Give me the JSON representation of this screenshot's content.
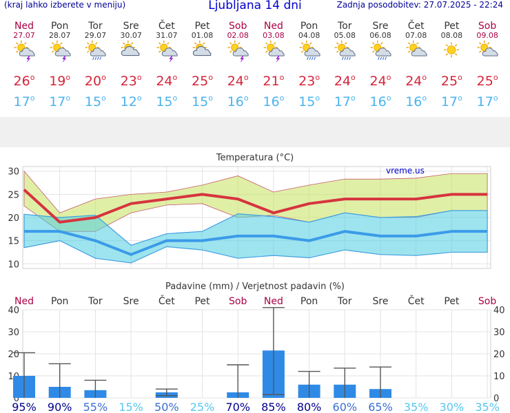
{
  "header": {
    "left_note": "(kraj lahko izberete v meniju)",
    "title": "Ljubljana 14 dni",
    "last_update": "Zadnja posodobitev: 27.07.2025 - 22:24"
  },
  "colors": {
    "weekend": "#aa0044",
    "weekday": "#333333",
    "max": "#d6243a",
    "min": "#4bb3ee"
  },
  "days": [
    {
      "name": "Ned",
      "date": "27.07",
      "weekend": true,
      "icon": "sun-cloud-thunder-icon",
      "max": "26",
      "min": "17"
    },
    {
      "name": "Pon",
      "date": "28.07",
      "weekend": false,
      "icon": "sun-cloud-thunder-icon",
      "max": "19",
      "min": "17"
    },
    {
      "name": "Tor",
      "date": "29.07",
      "weekend": false,
      "icon": "sun-cloud-rain-icon",
      "max": "20",
      "min": "15"
    },
    {
      "name": "Sre",
      "date": "30.07",
      "weekend": false,
      "icon": "partly-cloudy-icon",
      "max": "23",
      "min": "12"
    },
    {
      "name": "Čet",
      "date": "31.07",
      "weekend": false,
      "icon": "sun-cloud-thunder-icon",
      "max": "24",
      "min": "15"
    },
    {
      "name": "Pet",
      "date": "01.08",
      "weekend": false,
      "icon": "partly-cloudy-icon",
      "max": "25",
      "min": "15"
    },
    {
      "name": "Sob",
      "date": "02.08",
      "weekend": true,
      "icon": "sun-cloud-thunder-icon",
      "max": "24",
      "min": "16"
    },
    {
      "name": "Ned",
      "date": "03.08",
      "weekend": true,
      "icon": "sun-cloud-thunder-icon",
      "max": "21",
      "min": "16"
    },
    {
      "name": "Pon",
      "date": "04.08",
      "weekend": false,
      "icon": "sun-cloud-rain-icon",
      "max": "23",
      "min": "15"
    },
    {
      "name": "Tor",
      "date": "05.08",
      "weekend": false,
      "icon": "sun-cloud-rain-icon",
      "max": "24",
      "min": "17"
    },
    {
      "name": "Sre",
      "date": "06.08",
      "weekend": false,
      "icon": "sun-cloud-rain-icon",
      "max": "24",
      "min": "16"
    },
    {
      "name": "Čet",
      "date": "07.08",
      "weekend": false,
      "icon": "sun-cloud-icon",
      "max": "24",
      "min": "16"
    },
    {
      "name": "Pet",
      "date": "08.08",
      "weekend": false,
      "icon": "sun-icon",
      "max": "25",
      "min": "17"
    },
    {
      "name": "Sob",
      "date": "09.08",
      "weekend": true,
      "icon": "sun-cloud-icon",
      "max": "25",
      "min": "17"
    }
  ],
  "chart_data": [
    {
      "type": "line",
      "title": "Temperatura (°C)",
      "watermark": "vreme.us",
      "ylim": [
        9,
        31
      ],
      "yticks": [
        10,
        15,
        20,
        25,
        30
      ],
      "series": [
        {
          "name": "max",
          "values": [
            26,
            19,
            20,
            23,
            24,
            25,
            24,
            21,
            23,
            24,
            24,
            24,
            25,
            25
          ]
        },
        {
          "name": "min",
          "values": [
            17,
            17,
            15,
            12,
            15,
            15,
            16,
            16,
            15,
            17,
            16,
            16,
            17,
            17
          ]
        },
        {
          "name": "max_upper",
          "values": [
            30,
            21,
            24,
            25,
            25.5,
            27,
            29,
            25.5,
            27,
            28.3,
            28.3,
            28.5,
            29.5,
            29.5
          ]
        },
        {
          "name": "max_lower",
          "values": [
            22.5,
            17,
            17,
            21,
            22.7,
            23,
            20,
            20.5,
            19,
            21,
            20,
            20,
            21.5,
            21.5
          ]
        },
        {
          "name": "min_upper",
          "values": [
            20.7,
            20,
            20.5,
            14,
            16.5,
            17,
            20.8,
            20.2,
            19,
            21,
            20,
            20.2,
            21.5,
            21.5
          ]
        },
        {
          "name": "min_lower",
          "values": [
            13.5,
            15,
            11.2,
            10.2,
            13.7,
            13,
            11.2,
            11.8,
            11.3,
            13,
            12,
            11.8,
            12.5,
            12.5
          ]
        }
      ]
    },
    {
      "type": "bar",
      "title": "Padavine (mm) / Verjetnost padavin (%)",
      "ylim": [
        0,
        40
      ],
      "yticks": [
        0,
        10,
        20,
        30,
        40
      ],
      "values": [
        10,
        5,
        3.5,
        0,
        2.5,
        0,
        2.5,
        21.5,
        6,
        6,
        4,
        0,
        0,
        0
      ],
      "range_min": [
        0,
        0,
        0,
        null,
        1,
        null,
        0,
        1.5,
        0,
        0,
        0,
        null,
        null,
        null
      ],
      "range_max": [
        20.5,
        15.5,
        8,
        null,
        4,
        null,
        15,
        41,
        12,
        13.5,
        14,
        null,
        null,
        null
      ],
      "probability": [
        "95%",
        "90%",
        "55%",
        "15%",
        "50%",
        "25%",
        "70%",
        "85%",
        "80%",
        "60%",
        "65%",
        "35%",
        "30%",
        "35%"
      ]
    }
  ]
}
